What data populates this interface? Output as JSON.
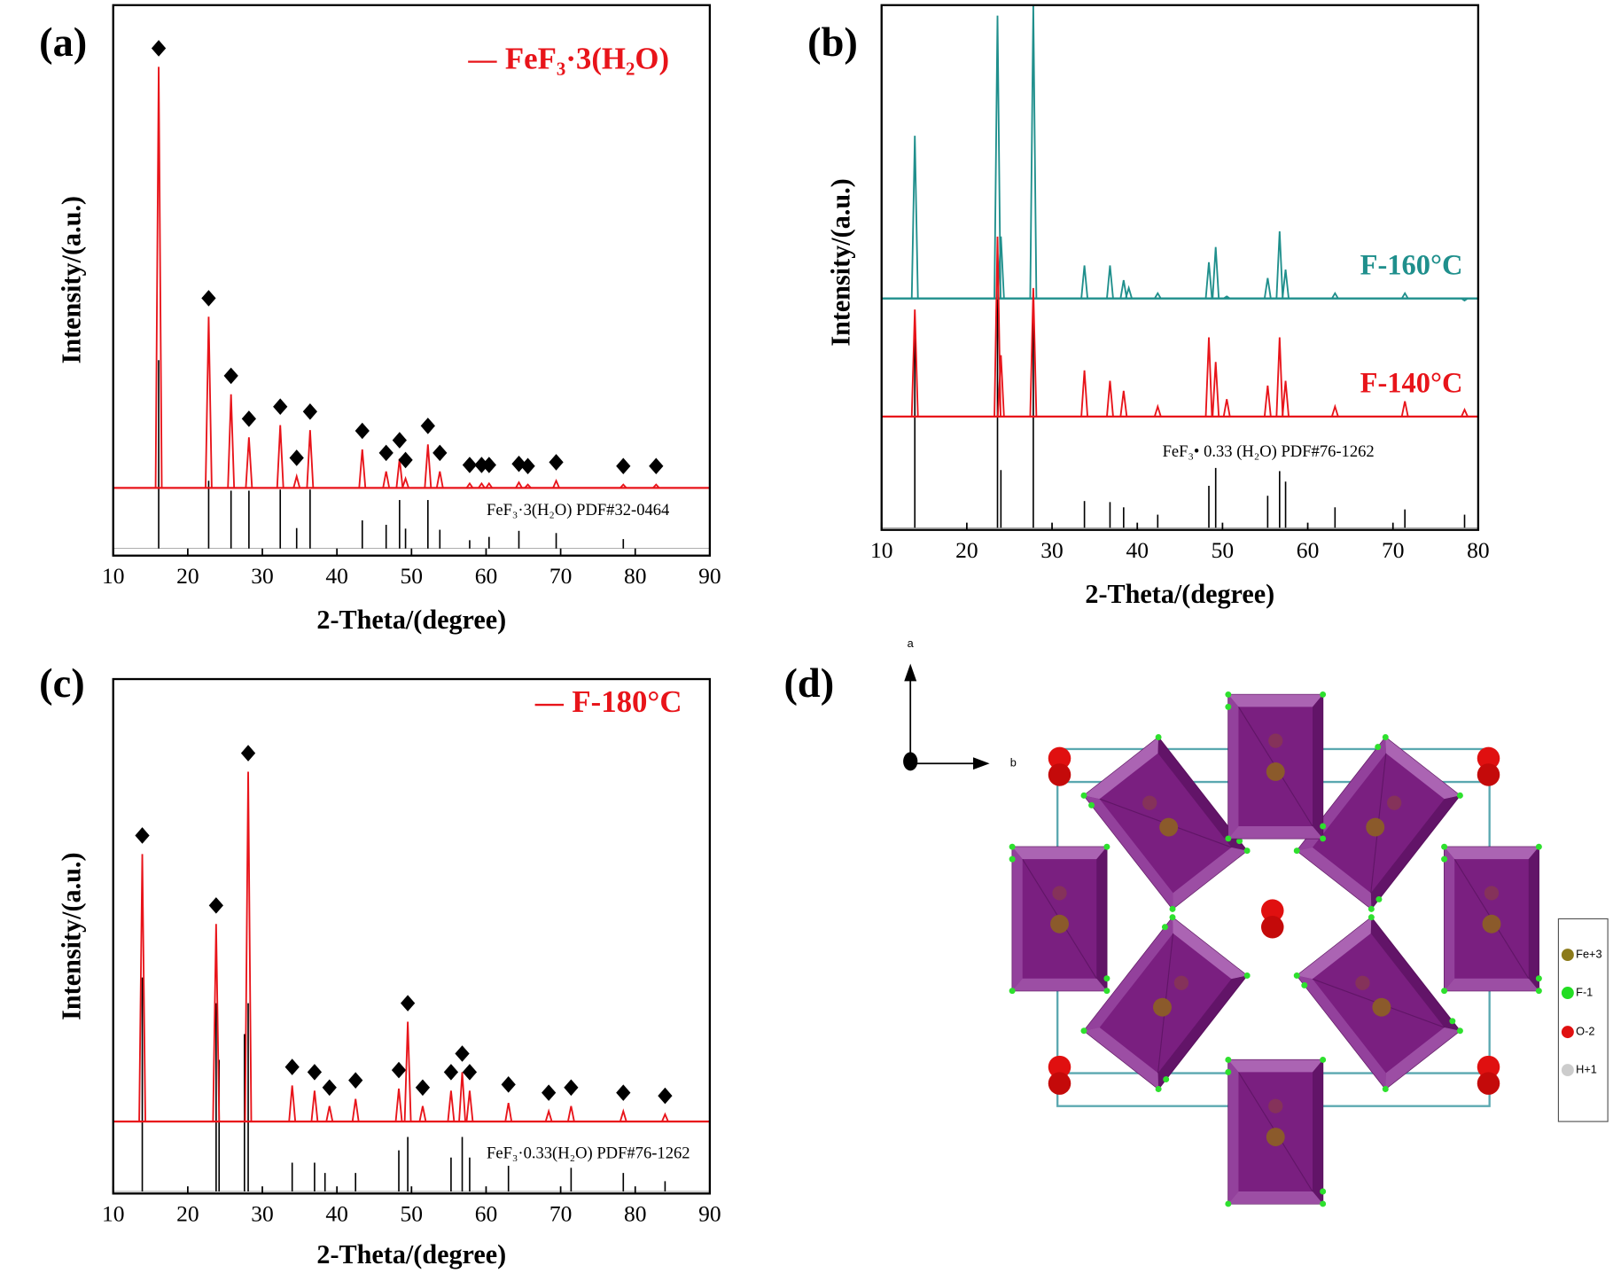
{
  "chart_data": [
    {
      "type": "line",
      "panel_label": "(a)",
      "xlabel": "2-Theta/(degree)",
      "ylabel": "Intensity/(a.u.)",
      "xlim": [
        10,
        90
      ],
      "xticks": [
        10,
        20,
        30,
        40,
        50,
        60,
        70,
        80,
        90
      ],
      "ylim": [
        0,
        100
      ],
      "legend": "upper right",
      "markers": true,
      "series": [
        {
          "name": "FeF₃·3(H₂O)",
          "color": "#e8141a",
          "baseline": 12.3,
          "x": [
            16.1,
            22.8,
            25.8,
            28.2,
            32.4,
            34.6,
            36.4,
            43.4,
            46.6,
            48.4,
            49.2,
            52.2,
            53.8,
            57.8,
            59.4,
            60.4,
            64.4,
            65.6,
            69.4,
            78.4,
            82.8
          ],
          "values": [
            88.8,
            43.4,
            29.3,
            21.5,
            23.7,
            14.4,
            22.8,
            19.3,
            15.3,
            17.6,
            14.0,
            20.2,
            15.3,
            13.1,
            13.1,
            13.1,
            13.3,
            12.9,
            13.6,
            12.9,
            12.9
          ]
        }
      ],
      "reference": {
        "name": "FeF₃·3(H₂O) PDF#32-0464",
        "color": "#000000",
        "baseline": 1.3,
        "x": [
          16.1,
          22.8,
          25.8,
          28.2,
          32.4,
          34.6,
          36.4,
          43.4,
          46.6,
          48.4,
          49.2,
          52.2,
          53.8,
          57.8,
          60.4,
          64.4,
          69.4,
          78.4
        ],
        "values": [
          35.5,
          13.6,
          11.8,
          11.8,
          12.0,
          5.0,
          12.0,
          6.4,
          5.6,
          10.1,
          4.9,
          10.1,
          4.7,
          2.8,
          3.4,
          4.5,
          4.1,
          3.0
        ]
      }
    },
    {
      "type": "line",
      "panel_label": "(b)",
      "xlabel": "2-Theta/(degree)",
      "ylabel": "Intensity/(a.u.)",
      "xlim": [
        10,
        80
      ],
      "xticks": [
        10,
        20,
        30,
        40,
        50,
        60,
        70,
        80
      ],
      "ylim": [
        0,
        100
      ],
      "legend": "inline",
      "markers": false,
      "series": [
        {
          "name": "F-160°C",
          "color": "#1f8f8c",
          "baseline": 44.1,
          "x": [
            13.9,
            23.6,
            24.0,
            27.8,
            33.8,
            36.8,
            38.4,
            39.0,
            42.4,
            48.4,
            49.2,
            50.5,
            55.3,
            56.7,
            57.4,
            63.2,
            71.4,
            78.4
          ],
          "values": [
            75.1,
            98.0,
            55.9,
            100,
            50.4,
            50.4,
            47.6,
            46.1,
            45.1,
            51.0,
            53.9,
            44.5,
            48.0,
            56.9,
            49.6,
            45.1,
            45.1,
            43.7
          ]
        },
        {
          "name": "F-140°C",
          "color": "#e8141a",
          "baseline": 21.6,
          "x": [
            13.9,
            23.6,
            24.0,
            27.8,
            33.8,
            36.8,
            38.4,
            42.4,
            48.4,
            49.2,
            50.5,
            55.3,
            56.7,
            57.4,
            63.2,
            71.4,
            78.4
          ],
          "values": [
            42.0,
            55.9,
            33.3,
            46.1,
            30.4,
            28.4,
            26.5,
            23.5,
            36.7,
            32.0,
            24.9,
            27.5,
            36.7,
            28.4,
            23.5,
            24.5,
            22.9
          ]
        }
      ],
      "reference": {
        "name": "FeF₃• 0.33 (H₂O) PDF#76-1262",
        "color": "#000000",
        "baseline": 0.4,
        "x": [
          13.9,
          23.6,
          24.0,
          27.8,
          33.8,
          36.8,
          38.4,
          42.4,
          48.4,
          49.2,
          55.3,
          56.7,
          57.4,
          63.2,
          71.4,
          78.4
        ],
        "values": [
          38.2,
          44.1,
          11.4,
          42.2,
          5.5,
          5.3,
          4.3,
          2.9,
          8.4,
          11.8,
          6.5,
          11.2,
          9.2,
          4.3,
          3.9,
          2.9
        ]
      }
    },
    {
      "type": "line",
      "panel_label": "(c)",
      "xlabel": "2-Theta/(degree)",
      "ylabel": "Intensity/(a.u.)",
      "xlim": [
        10,
        90
      ],
      "xticks": [
        10,
        20,
        30,
        40,
        50,
        60,
        70,
        80,
        90
      ],
      "ylim": [
        0,
        100
      ],
      "legend": "upper right",
      "markers": true,
      "series": [
        {
          "name": "F-180°C",
          "color": "#e8141a",
          "baseline": 14,
          "x": [
            13.9,
            23.8,
            28.1,
            34.0,
            37.0,
            39.0,
            42.5,
            48.3,
            49.5,
            51.5,
            55.3,
            56.8,
            57.8,
            63.0,
            68.4,
            71.4,
            78.4,
            84.0
          ],
          "values": [
            66,
            52.4,
            82,
            21,
            20,
            17,
            18.4,
            20.4,
            33.4,
            17,
            20,
            23.6,
            20,
            17.6,
            16,
            17,
            16,
            15.4
          ]
        }
      ],
      "reference": {
        "name": "FeF₃·0.33(H₂O) PDF#76-1262",
        "color": "#000000",
        "baseline": 0.4,
        "x": [
          13.9,
          23.8,
          24.2,
          27.6,
          28.1,
          34.0,
          37.0,
          38.4,
          42.5,
          48.3,
          49.5,
          55.3,
          56.8,
          57.8,
          63.0,
          71.4,
          78.4,
          84.0
        ],
        "values": [
          42,
          37,
          26,
          31,
          37,
          6,
          6,
          4,
          4,
          8.4,
          11,
          7,
          11,
          7,
          5.4,
          5,
          4,
          2.4
        ]
      }
    }
  ],
  "structure": {
    "panel_label": "(d)",
    "axis_labels": [
      "a",
      "b"
    ],
    "legend": [
      "Fe+3",
      "F-1",
      "O-2",
      "H+1"
    ]
  }
}
